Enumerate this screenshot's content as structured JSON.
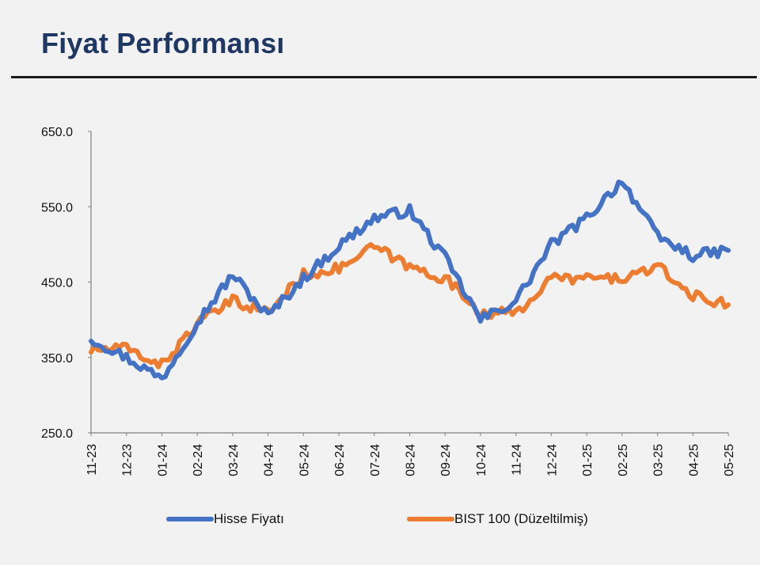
{
  "header": {
    "title": "Fiyat Performansı"
  },
  "chart_data": {
    "type": "line",
    "title": "",
    "xlabel": "",
    "ylabel": "",
    "ylim": [
      250,
      650
    ],
    "y_ticks": [
      "250.0",
      "350.0",
      "450.0",
      "550.0",
      "650.0"
    ],
    "x_ticks": [
      "11-23",
      "12-23",
      "01-24",
      "02-24",
      "03-24",
      "04-24",
      "05-24",
      "06-24",
      "07-24",
      "08-24",
      "09-24",
      "10-24",
      "11-24",
      "12-24",
      "01-25",
      "02-25",
      "03-25",
      "04-25",
      "05-25"
    ],
    "grid": false,
    "legend_position": "bottom",
    "x": [
      "11-23",
      "12-23",
      "01-24",
      "02-24",
      "03-24",
      "04-24",
      "05-24",
      "06-24",
      "07-24",
      "08-24",
      "09-24",
      "10-24",
      "11-24",
      "12-24",
      "01-25",
      "02-25",
      "03-25",
      "04-25",
      "05-25"
    ],
    "series": [
      {
        "name": "Hisse Fiyatı",
        "color": "#4472c4",
        "values": [
          375,
          350,
          322,
          397,
          460,
          405,
          455,
          498,
          535,
          545,
          482,
          400,
          425,
          500,
          535,
          585,
          510,
          485,
          492
        ]
      },
      {
        "name": "BIST 100 (Düzeltilmiş)",
        "color": "#ed7d31",
        "values": [
          360,
          362,
          340,
          395,
          425,
          410,
          460,
          468,
          497,
          470,
          455,
          410,
          408,
          455,
          455,
          455,
          470,
          432,
          420
        ]
      }
    ]
  }
}
